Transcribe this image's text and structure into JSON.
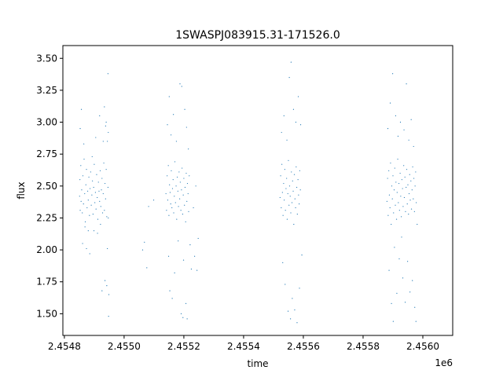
{
  "chart_data": {
    "type": "scatter",
    "title": "1SWASPJ083915.31-171526.0",
    "xlabel": "time",
    "ylabel": "flux",
    "x_offset_label": "1e6",
    "xlim": [
      2454795,
      2456100
    ],
    "ylim": [
      1.33,
      3.6
    ],
    "x_ticks": [
      2454800,
      2455000,
      2455200,
      2455400,
      2455600,
      2455800,
      2456000
    ],
    "x_tick_labels": [
      "2.4548",
      "2.4550",
      "2.4552",
      "2.4554",
      "2.4556",
      "2.4558",
      "2.4560"
    ],
    "y_ticks": [
      1.5,
      1.75,
      2.0,
      2.25,
      2.5,
      2.75,
      3.0,
      3.25,
      3.5
    ],
    "y_tick_labels": [
      "1.50",
      "1.75",
      "2.00",
      "2.25",
      "2.50",
      "2.75",
      "3.00",
      "3.25",
      "3.50"
    ],
    "grid": false,
    "marker_color": "#1f77b4",
    "series": [
      {
        "points": [
          [
            2454851,
            2.42
          ],
          [
            2454852,
            2.55
          ],
          [
            2454853,
            2.31
          ],
          [
            2454855,
            2.66
          ],
          [
            2454856,
            2.38
          ],
          [
            2454858,
            2.47
          ],
          [
            2454860,
            2.29
          ],
          [
            2454862,
            2.58
          ],
          [
            2454864,
            2.36
          ],
          [
            2454866,
            2.71
          ],
          [
            2454868,
            2.44
          ],
          [
            2454870,
            2.22
          ],
          [
            2454872,
            2.51
          ],
          [
            2454874,
            2.63
          ],
          [
            2454876,
            2.33
          ],
          [
            2454878,
            2.46
          ],
          [
            2454880,
            2.39
          ],
          [
            2454882,
            2.57
          ],
          [
            2454884,
            2.27
          ],
          [
            2454886,
            2.48
          ],
          [
            2454888,
            2.61
          ],
          [
            2454890,
            2.35
          ],
          [
            2454892,
            2.43
          ],
          [
            2454894,
            2.54
          ],
          [
            2454896,
            2.28
          ],
          [
            2454898,
            2.49
          ],
          [
            2454900,
            2.67
          ],
          [
            2454902,
            2.37
          ],
          [
            2454904,
            2.45
          ],
          [
            2454906,
            2.32
          ],
          [
            2454908,
            2.59
          ],
          [
            2454910,
            2.41
          ],
          [
            2454912,
            2.24
          ],
          [
            2454914,
            2.53
          ],
          [
            2454916,
            2.46
          ],
          [
            2454918,
            2.38
          ],
          [
            2454920,
            2.62
          ],
          [
            2454922,
            2.34
          ],
          [
            2454924,
            2.47
          ],
          [
            2454926,
            2.56
          ],
          [
            2454928,
            2.29
          ],
          [
            2454930,
            2.44
          ],
          [
            2454932,
            2.68
          ],
          [
            2454934,
            2.31
          ],
          [
            2454936,
            2.52
          ],
          [
            2454938,
            2.4
          ],
          [
            2454940,
            2.63
          ],
          [
            2454942,
            2.26
          ],
          [
            2454944,
            2.85
          ],
          [
            2454946,
            2.49
          ],
          [
            2454853,
            2.95
          ],
          [
            2454857,
            3.1
          ],
          [
            2454861,
            2.05
          ],
          [
            2454865,
            2.83
          ],
          [
            2454869,
            2.18
          ],
          [
            2454874,
            2.01
          ],
          [
            2454880,
            2.15
          ],
          [
            2454885,
            1.97
          ],
          [
            2454893,
            2.73
          ],
          [
            2454899,
            2.15
          ],
          [
            2454905,
            2.88
          ],
          [
            2454911,
            2.13
          ],
          [
            2454918,
            3.05
          ],
          [
            2454921,
            2.2
          ],
          [
            2454926,
            1.68
          ],
          [
            2454930,
            2.85
          ],
          [
            2454934,
            3.12
          ],
          [
            2454936,
            1.76
          ],
          [
            2454938,
            2.97
          ],
          [
            2454940,
            3.0
          ],
          [
            2454942,
            1.72
          ],
          [
            2454944,
            2.01
          ],
          [
            2454946,
            3.38
          ],
          [
            2454947,
            2.25
          ],
          [
            2454948,
            1.48
          ],
          [
            2454949,
            1.65
          ],
          [
            2454947,
            2.92
          ],
          [
            2455062,
            2.0
          ],
          [
            2455068,
            2.06
          ],
          [
            2455076,
            1.86
          ],
          [
            2455082,
            2.34
          ],
          [
            2455099,
            2.39
          ],
          [
            2455140,
            2.44
          ],
          [
            2455142,
            2.31
          ],
          [
            2455144,
            2.58
          ],
          [
            2455146,
            2.39
          ],
          [
            2455148,
            2.66
          ],
          [
            2455150,
            2.27
          ],
          [
            2455152,
            2.51
          ],
          [
            2455154,
            2.45
          ],
          [
            2455156,
            2.36
          ],
          [
            2455158,
            2.62
          ],
          [
            2455160,
            2.33
          ],
          [
            2455162,
            2.48
          ],
          [
            2455164,
            2.55
          ],
          [
            2455166,
            2.29
          ],
          [
            2455168,
            2.42
          ],
          [
            2455170,
            2.69
          ],
          [
            2455172,
            2.37
          ],
          [
            2455174,
            2.5
          ],
          [
            2455176,
            2.24
          ],
          [
            2455178,
            2.57
          ],
          [
            2455180,
            2.46
          ],
          [
            2455182,
            2.34
          ],
          [
            2455184,
            2.61
          ],
          [
            2455186,
            2.4
          ],
          [
            2455188,
            2.53
          ],
          [
            2455190,
            2.31
          ],
          [
            2455192,
            2.47
          ],
          [
            2455194,
            2.64
          ],
          [
            2455196,
            2.28
          ],
          [
            2455198,
            2.43
          ],
          [
            2455200,
            2.56
          ],
          [
            2455202,
            2.35
          ],
          [
            2455204,
            2.49
          ],
          [
            2455206,
            2.22
          ],
          [
            2455208,
            2.6
          ],
          [
            2455210,
            2.38
          ],
          [
            2455212,
            2.52
          ],
          [
            2455214,
            2.44
          ],
          [
            2455216,
            2.3
          ],
          [
            2455218,
            2.58
          ],
          [
            2455145,
            2.98
          ],
          [
            2455149,
            1.95
          ],
          [
            2455151,
            3.2
          ],
          [
            2455153,
            1.68
          ],
          [
            2455157,
            2.9
          ],
          [
            2455161,
            1.62
          ],
          [
            2455165,
            3.06
          ],
          [
            2455169,
            1.82
          ],
          [
            2455175,
            2.85
          ],
          [
            2455181,
            2.07
          ],
          [
            2455187,
            3.3
          ],
          [
            2455191,
            1.5
          ],
          [
            2455193,
            3.28
          ],
          [
            2455197,
            1.47
          ],
          [
            2455199,
            1.92
          ],
          [
            2455203,
            3.1
          ],
          [
            2455207,
            1.58
          ],
          [
            2455209,
            2.96
          ],
          [
            2455211,
            1.46
          ],
          [
            2455215,
            2.79
          ],
          [
            2455221,
            2.04
          ],
          [
            2455225,
            1.85
          ],
          [
            2455232,
            2.33
          ],
          [
            2455236,
            1.95
          ],
          [
            2455240,
            2.5
          ],
          [
            2455244,
            1.84
          ],
          [
            2455248,
            2.09
          ],
          [
            2455522,
            2.41
          ],
          [
            2455524,
            2.58
          ],
          [
            2455526,
            2.33
          ],
          [
            2455528,
            2.67
          ],
          [
            2455530,
            2.45
          ],
          [
            2455532,
            2.27
          ],
          [
            2455534,
            2.52
          ],
          [
            2455536,
            2.39
          ],
          [
            2455538,
            2.63
          ],
          [
            2455540,
            2.31
          ],
          [
            2455542,
            2.48
          ],
          [
            2455544,
            2.56
          ],
          [
            2455546,
            2.24
          ],
          [
            2455548,
            2.44
          ],
          [
            2455550,
            2.7
          ],
          [
            2455552,
            2.35
          ],
          [
            2455554,
            2.5
          ],
          [
            2455556,
            2.42
          ],
          [
            2455558,
            2.29
          ],
          [
            2455560,
            2.61
          ],
          [
            2455562,
            2.37
          ],
          [
            2455564,
            2.54
          ],
          [
            2455566,
            2.46
          ],
          [
            2455568,
            2.2
          ],
          [
            2455570,
            2.59
          ],
          [
            2455572,
            2.4
          ],
          [
            2455574,
            2.33
          ],
          [
            2455576,
            2.65
          ],
          [
            2455578,
            2.49
          ],
          [
            2455580,
            2.28
          ],
          [
            2455582,
            2.55
          ],
          [
            2455584,
            2.43
          ],
          [
            2455586,
            2.36
          ],
          [
            2455588,
            2.62
          ],
          [
            2455590,
            2.47
          ],
          [
            2455527,
            2.92
          ],
          [
            2455531,
            1.9
          ],
          [
            2455535,
            3.05
          ],
          [
            2455539,
            1.73
          ],
          [
            2455545,
            2.86
          ],
          [
            2455549,
            1.52
          ],
          [
            2455553,
            3.35
          ],
          [
            2455557,
            1.46
          ],
          [
            2455559,
            3.47
          ],
          [
            2455563,
            1.62
          ],
          [
            2455567,
            3.1
          ],
          [
            2455571,
            1.53
          ],
          [
            2455575,
            3.0
          ],
          [
            2455579,
            1.43
          ],
          [
            2455583,
            3.2
          ],
          [
            2455587,
            1.7
          ],
          [
            2455591,
            2.98
          ],
          [
            2455595,
            1.96
          ],
          [
            2455880,
            2.38
          ],
          [
            2455882,
            2.56
          ],
          [
            2455884,
            2.27
          ],
          [
            2455886,
            2.62
          ],
          [
            2455888,
            2.43
          ],
          [
            2455890,
            2.33
          ],
          [
            2455892,
            2.68
          ],
          [
            2455894,
            2.2
          ],
          [
            2455896,
            2.5
          ],
          [
            2455898,
            2.4
          ],
          [
            2455900,
            2.58
          ],
          [
            2455902,
            2.29
          ],
          [
            2455904,
            2.47
          ],
          [
            2455906,
            2.64
          ],
          [
            2455908,
            2.35
          ],
          [
            2455910,
            2.53
          ],
          [
            2455912,
            2.24
          ],
          [
            2455914,
            2.45
          ],
          [
            2455916,
            2.71
          ],
          [
            2455918,
            2.37
          ],
          [
            2455920,
            2.52
          ],
          [
            2455922,
            2.31
          ],
          [
            2455924,
            2.6
          ],
          [
            2455926,
            2.42
          ],
          [
            2455928,
            2.26
          ],
          [
            2455930,
            2.55
          ],
          [
            2455932,
            2.48
          ],
          [
            2455934,
            2.34
          ],
          [
            2455936,
            2.66
          ],
          [
            2455938,
            2.41
          ],
          [
            2455940,
            2.57
          ],
          [
            2455942,
            2.3
          ],
          [
            2455944,
            2.49
          ],
          [
            2455946,
            2.63
          ],
          [
            2455948,
            2.36
          ],
          [
            2455950,
            2.51
          ],
          [
            2455952,
            2.28
          ],
          [
            2455954,
            2.44
          ],
          [
            2455956,
            2.59
          ],
          [
            2455958,
            2.39
          ],
          [
            2455960,
            2.54
          ],
          [
            2455962,
            2.32
          ],
          [
            2455964,
            2.47
          ],
          [
            2455966,
            2.65
          ],
          [
            2455968,
            2.4
          ],
          [
            2455970,
            2.56
          ],
          [
            2455972,
            2.3
          ],
          [
            2455974,
            2.5
          ],
          [
            2455976,
            2.61
          ],
          [
            2455978,
            2.37
          ],
          [
            2455883,
            2.95
          ],
          [
            2455887,
            1.84
          ],
          [
            2455891,
            3.15
          ],
          [
            2455895,
            1.58
          ],
          [
            2455899,
            3.38
          ],
          [
            2455901,
            1.44
          ],
          [
            2455905,
            2.02
          ],
          [
            2455909,
            3.05
          ],
          [
            2455913,
            1.66
          ],
          [
            2455917,
            2.89
          ],
          [
            2455921,
            1.93
          ],
          [
            2455925,
            3.0
          ],
          [
            2455929,
            2.1
          ],
          [
            2455933,
            1.78
          ],
          [
            2455937,
            2.94
          ],
          [
            2455941,
            1.59
          ],
          [
            2455945,
            3.3
          ],
          [
            2455949,
            1.91
          ],
          [
            2455953,
            2.86
          ],
          [
            2455957,
            1.67
          ],
          [
            2455961,
            3.02
          ],
          [
            2455965,
            1.76
          ],
          [
            2455969,
            2.81
          ],
          [
            2455973,
            1.55
          ],
          [
            2455977,
            1.44
          ],
          [
            2455981,
            2.2
          ]
        ]
      }
    ]
  }
}
